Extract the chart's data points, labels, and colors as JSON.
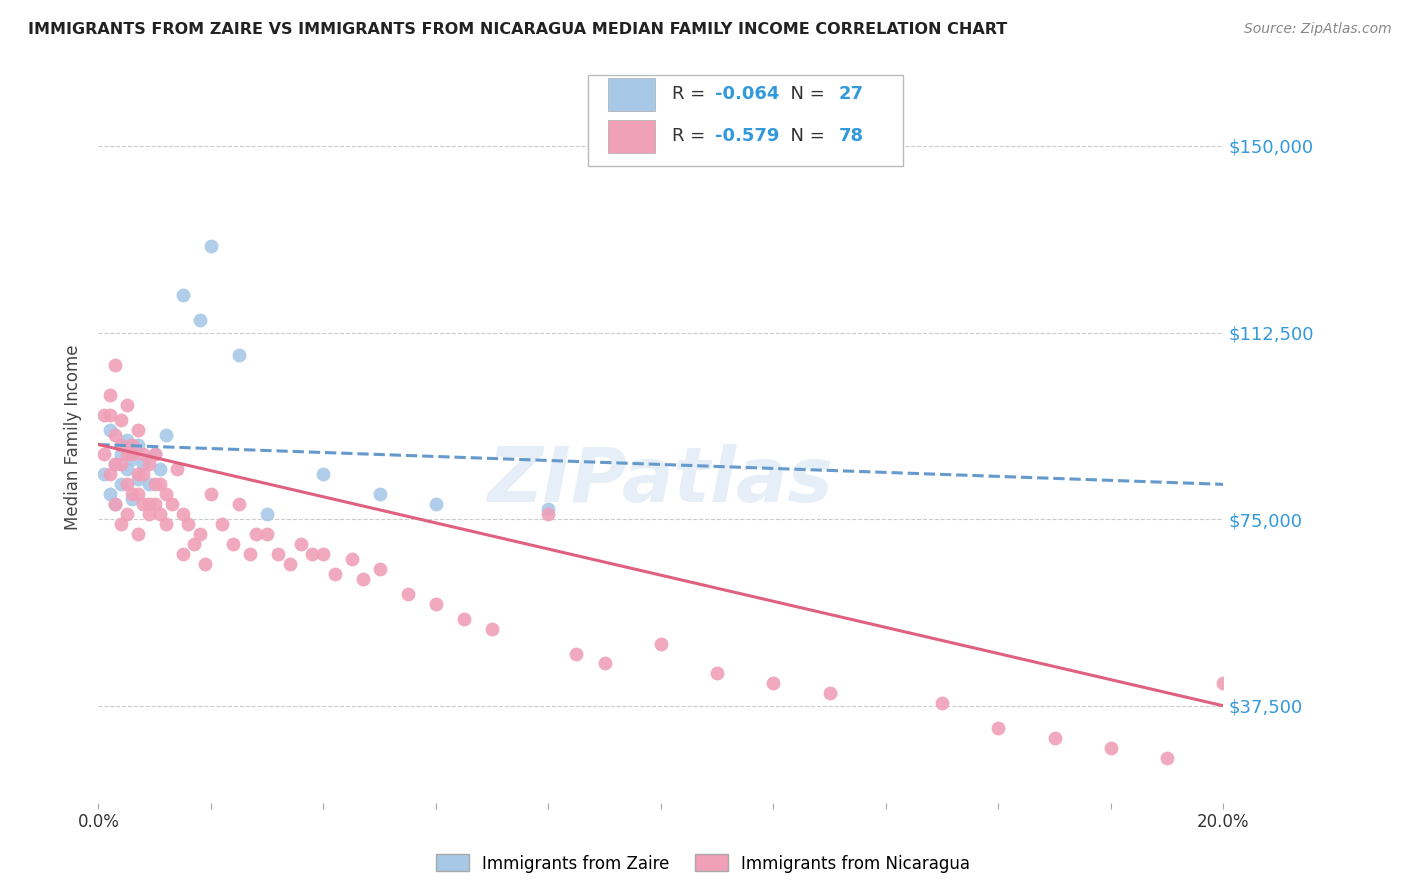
{
  "title": "IMMIGRANTS FROM ZAIRE VS IMMIGRANTS FROM NICARAGUA MEDIAN FAMILY INCOME CORRELATION CHART",
  "source": "Source: ZipAtlas.com",
  "ylabel": "Median Family Income",
  "xlim": [
    0.0,
    0.2
  ],
  "ylim": [
    18000,
    165000
  ],
  "yticks": [
    37500,
    75000,
    112500,
    150000
  ],
  "ytick_labels": [
    "$37,500",
    "$75,000",
    "$112,500",
    "$150,000"
  ],
  "grid_color": "#cccccc",
  "background_color": "#ffffff",
  "zaire_color": "#a8c8e8",
  "nicaragua_color": "#f0a0b8",
  "zaire_line_color": "#6699cc",
  "nicaragua_line_color": "#e06080",
  "R_zaire": -0.064,
  "N_zaire": 27,
  "R_nicaragua": -0.579,
  "N_nicaragua": 78,
  "zaire_points_x": [
    0.001,
    0.002,
    0.002,
    0.003,
    0.003,
    0.004,
    0.004,
    0.005,
    0.005,
    0.006,
    0.006,
    0.007,
    0.007,
    0.008,
    0.009,
    0.01,
    0.011,
    0.012,
    0.015,
    0.018,
    0.02,
    0.025,
    0.03,
    0.04,
    0.05,
    0.06,
    0.08
  ],
  "zaire_points_y": [
    84000,
    80000,
    93000,
    86000,
    78000,
    88000,
    82000,
    85000,
    91000,
    79000,
    87000,
    83000,
    90000,
    86000,
    82000,
    88000,
    85000,
    92000,
    120000,
    115000,
    130000,
    108000,
    76000,
    84000,
    80000,
    78000,
    77000
  ],
  "nicaragua_points_x": [
    0.001,
    0.001,
    0.002,
    0.002,
    0.003,
    0.003,
    0.003,
    0.004,
    0.004,
    0.004,
    0.005,
    0.005,
    0.005,
    0.006,
    0.006,
    0.007,
    0.007,
    0.007,
    0.008,
    0.008,
    0.009,
    0.009,
    0.01,
    0.01,
    0.011,
    0.012,
    0.013,
    0.014,
    0.015,
    0.015,
    0.016,
    0.017,
    0.018,
    0.019,
    0.02,
    0.022,
    0.024,
    0.025,
    0.027,
    0.028,
    0.03,
    0.032,
    0.034,
    0.036,
    0.038,
    0.04,
    0.042,
    0.045,
    0.047,
    0.05,
    0.055,
    0.06,
    0.065,
    0.07,
    0.08,
    0.085,
    0.09,
    0.1,
    0.11,
    0.12,
    0.13,
    0.15,
    0.16,
    0.17,
    0.18,
    0.19,
    0.2,
    0.002,
    0.003,
    0.004,
    0.005,
    0.006,
    0.007,
    0.008,
    0.009,
    0.01,
    0.011,
    0.012
  ],
  "nicaragua_points_y": [
    96000,
    88000,
    100000,
    84000,
    106000,
    92000,
    78000,
    95000,
    86000,
    74000,
    98000,
    88000,
    76000,
    90000,
    80000,
    93000,
    84000,
    72000,
    88000,
    78000,
    86000,
    76000,
    88000,
    78000,
    82000,
    80000,
    78000,
    85000,
    76000,
    68000,
    74000,
    70000,
    72000,
    66000,
    80000,
    74000,
    70000,
    78000,
    68000,
    72000,
    72000,
    68000,
    66000,
    70000,
    68000,
    68000,
    64000,
    67000,
    63000,
    65000,
    60000,
    58000,
    55000,
    53000,
    76000,
    48000,
    46000,
    50000,
    44000,
    42000,
    40000,
    38000,
    33000,
    31000,
    29000,
    27000,
    42000,
    96000,
    86000,
    90000,
    82000,
    88000,
    80000,
    84000,
    78000,
    82000,
    76000,
    74000
  ]
}
